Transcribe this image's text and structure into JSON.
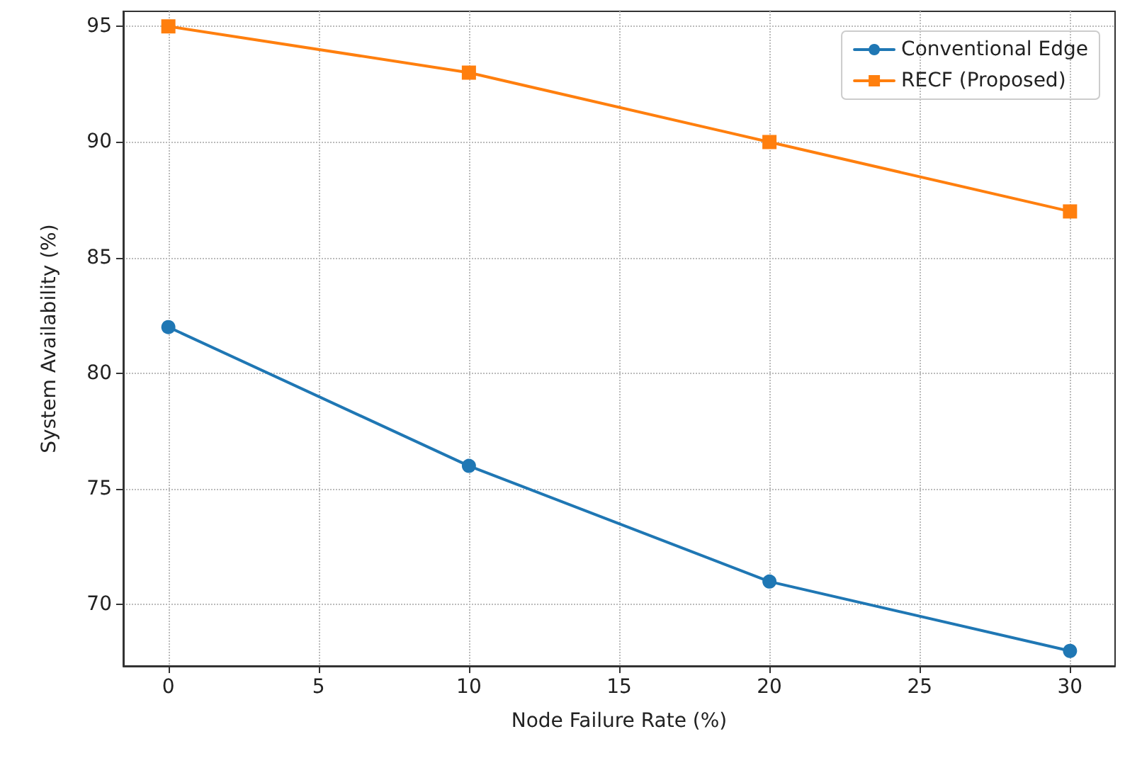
{
  "chart_data": {
    "type": "line",
    "xlabel": "Node Failure Rate (%)",
    "ylabel": "System Availability (%)",
    "x": [
      0,
      10,
      20,
      30
    ],
    "series": [
      {
        "name": "Conventional Edge",
        "color": "#1f77b4",
        "marker": "circle",
        "values": [
          82,
          76,
          71,
          68
        ]
      },
      {
        "name": "RECF (Proposed)",
        "color": "#ff7f0e",
        "marker": "square",
        "values": [
          95,
          93,
          90,
          87
        ]
      }
    ],
    "xlim": [
      -1.5,
      31.5
    ],
    "xticks": [
      0,
      5,
      10,
      15,
      20,
      25,
      30
    ],
    "ylim": [
      67.35,
      95.65
    ],
    "yticks": [
      70,
      75,
      80,
      85,
      90,
      95
    ],
    "grid": true,
    "legend": "top right",
    "line_style": "solid"
  }
}
